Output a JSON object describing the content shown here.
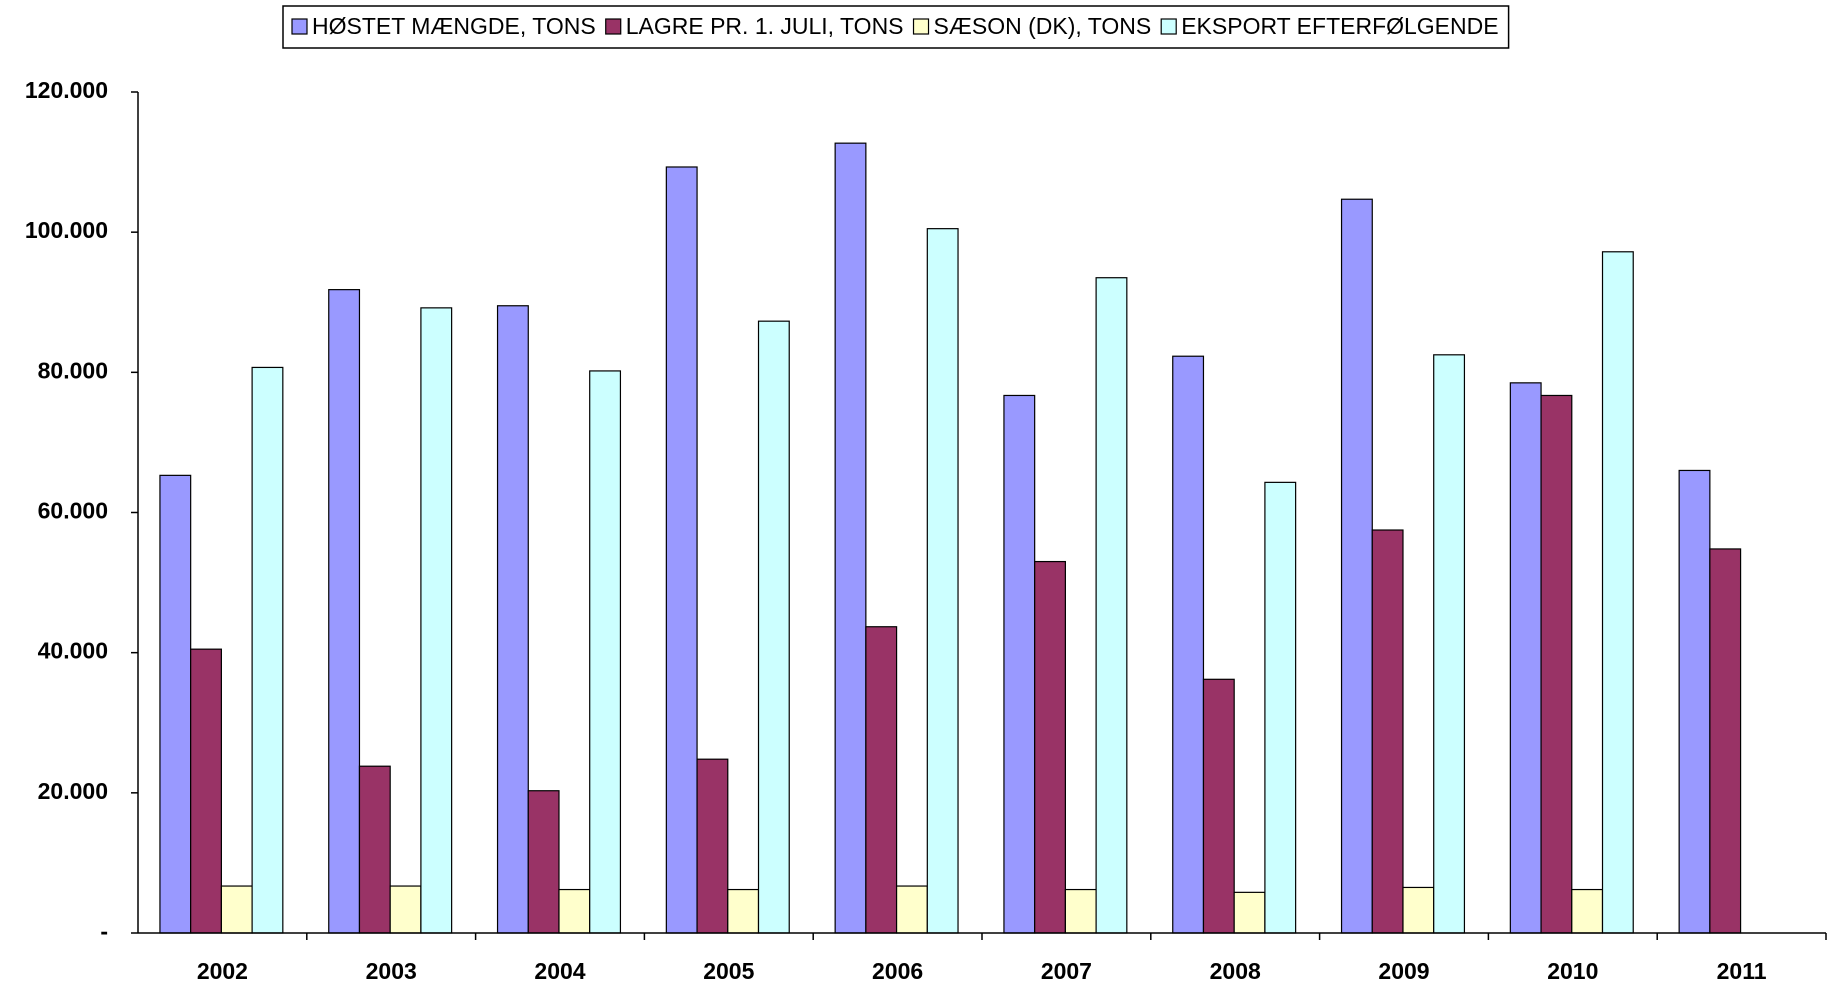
{
  "chart_data": {
    "type": "bar",
    "categories": [
      "2002",
      "2003",
      "2004",
      "2005",
      "2006",
      "2007",
      "2008",
      "2009",
      "2010",
      "2011"
    ],
    "series": [
      {
        "name": "HØSTET MÆNGDE, TONS",
        "color": "#9999ff",
        "values": [
          65300,
          91800,
          89500,
          109300,
          112700,
          76700,
          82300,
          104700,
          78500,
          66000
        ]
      },
      {
        "name": "LAGRE PR. 1. JULI, TONS",
        "color": "#993366",
        "values": [
          40500,
          23800,
          20300,
          24800,
          43700,
          53000,
          36200,
          57500,
          76700,
          54800
        ]
      },
      {
        "name": "SÆSON (DK), TONS",
        "color": "#ffffcc",
        "values": [
          6700,
          6700,
          6200,
          6200,
          6700,
          6200,
          5800,
          6500,
          6200,
          null
        ]
      },
      {
        "name": "EKSPORT EFTERFØLGENDE",
        "color": "#ccffff",
        "values": [
          80700,
          89200,
          80200,
          87300,
          100500,
          93500,
          64300,
          82500,
          97200,
          null
        ]
      }
    ],
    "ylim": [
      0,
      120000
    ],
    "yticks": [
      {
        "value": 0,
        "label": "-"
      },
      {
        "value": 20000,
        "label": "20.000"
      },
      {
        "value": 40000,
        "label": "40.000"
      },
      {
        "value": 60000,
        "label": "60.000"
      },
      {
        "value": 80000,
        "label": "80.000"
      },
      {
        "value": 100000,
        "label": "100.000"
      },
      {
        "value": 120000,
        "label": "120.000"
      }
    ],
    "legend": "top"
  }
}
